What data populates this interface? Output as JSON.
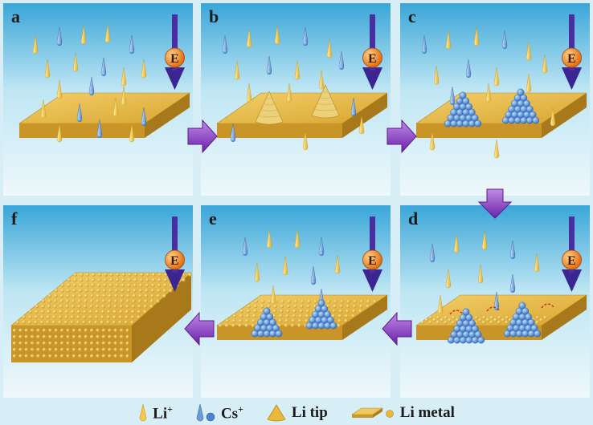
{
  "panels": [
    {
      "id": "a",
      "label": "a"
    },
    {
      "id": "b",
      "label": "b"
    },
    {
      "id": "c",
      "label": "c"
    },
    {
      "id": "d",
      "label": "d"
    },
    {
      "id": "e",
      "label": "e"
    },
    {
      "id": "f",
      "label": "f"
    }
  ],
  "field_label": "E",
  "legend": {
    "li_ion": "Li",
    "li_ion_sup": "+",
    "cs_ion": "Cs",
    "cs_ion_sup": "+",
    "li_tip": "Li tip",
    "li_metal": "Li metal"
  },
  "colors": {
    "background": "#d8eef6",
    "li_metal": "#e2b63c",
    "li_ion": "#f1c94d",
    "cs_ion": "#5a8fd0",
    "arrow": "#8a3fc2",
    "field": "#3a2a8f",
    "e_ball": "#f08a18"
  }
}
